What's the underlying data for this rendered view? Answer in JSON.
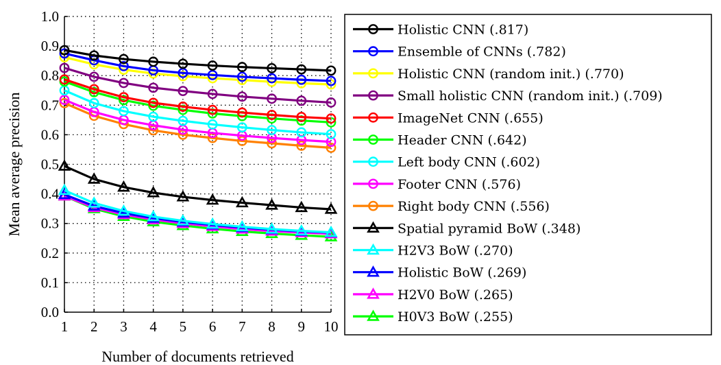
{
  "chart_data": {
    "type": "line",
    "title": "",
    "xlabel": "Number of documents retrieved",
    "ylabel": "Mean average precision",
    "x": [
      1,
      2,
      3,
      4,
      5,
      6,
      7,
      8,
      9,
      10
    ],
    "xlim": [
      1,
      10
    ],
    "ylim": [
      0.0,
      1.0
    ],
    "yticks": [
      "0.0",
      "0.1",
      "0.2",
      "0.3",
      "0.4",
      "0.5",
      "0.6",
      "0.7",
      "0.8",
      "0.9",
      "1.0"
    ],
    "xticks": [
      "1",
      "2",
      "3",
      "4",
      "5",
      "6",
      "7",
      "8",
      "9",
      "10"
    ],
    "grid": true,
    "legend_position": "right",
    "series": [
      {
        "name": "Holistic CNN (.817)",
        "color": "#000000",
        "marker": "circle",
        "values": [
          0.886,
          0.868,
          0.856,
          0.847,
          0.84,
          0.834,
          0.829,
          0.825,
          0.821,
          0.817
        ]
      },
      {
        "name": "Ensemble of CNNs (.782)",
        "color": "#0000ff",
        "marker": "circle",
        "values": [
          0.875,
          0.852,
          0.832,
          0.818,
          0.809,
          0.802,
          0.796,
          0.791,
          0.786,
          0.782
        ]
      },
      {
        "name": "Holistic CNN (random init.) (.770)",
        "color": "#ffff00",
        "marker": "circle",
        "values": [
          0.862,
          0.838,
          0.82,
          0.807,
          0.798,
          0.791,
          0.785,
          0.779,
          0.774,
          0.77
        ]
      },
      {
        "name": "Small holistic CNN (random init.) (.709)",
        "color": "#800080",
        "marker": "circle",
        "values": [
          0.826,
          0.796,
          0.775,
          0.759,
          0.748,
          0.738,
          0.729,
          0.722,
          0.715,
          0.709
        ]
      },
      {
        "name": "ImageNet CNN (.655)",
        "color": "#ff0000",
        "marker": "circle",
        "values": [
          0.787,
          0.754,
          0.727,
          0.708,
          0.695,
          0.684,
          0.675,
          0.667,
          0.66,
          0.655
        ]
      },
      {
        "name": "Header CNN (.642)",
        "color": "#00ff00",
        "marker": "circle",
        "values": [
          0.78,
          0.744,
          0.717,
          0.698,
          0.684,
          0.672,
          0.663,
          0.655,
          0.648,
          0.642
        ]
      },
      {
        "name": "Left body CNN (.602)",
        "color": "#00ffff",
        "marker": "circle",
        "values": [
          0.75,
          0.707,
          0.68,
          0.661,
          0.647,
          0.635,
          0.625,
          0.616,
          0.608,
          0.602
        ]
      },
      {
        "name": "Footer CNN (.576)",
        "color": "#ff00ff",
        "marker": "circle",
        "values": [
          0.718,
          0.677,
          0.65,
          0.632,
          0.617,
          0.606,
          0.597,
          0.589,
          0.582,
          0.576
        ]
      },
      {
        "name": "Right body CNN (.556)",
        "color": "#ff8000",
        "marker": "circle",
        "values": [
          0.707,
          0.664,
          0.636,
          0.615,
          0.6,
          0.589,
          0.579,
          0.571,
          0.563,
          0.556
        ]
      },
      {
        "name": "Spatial pyramid BoW (.348)",
        "color": "#000000",
        "marker": "triangle",
        "values": [
          0.494,
          0.45,
          0.423,
          0.404,
          0.39,
          0.379,
          0.37,
          0.362,
          0.354,
          0.348
        ]
      },
      {
        "name": "H2V3 BoW (.270)",
        "color": "#00ffff",
        "marker": "triangle",
        "values": [
          0.412,
          0.369,
          0.342,
          0.323,
          0.309,
          0.298,
          0.289,
          0.281,
          0.275,
          0.27
        ]
      },
      {
        "name": "Holistic BoW (.269)",
        "color": "#0000ff",
        "marker": "triangle",
        "values": [
          0.398,
          0.359,
          0.335,
          0.318,
          0.305,
          0.295,
          0.286,
          0.279,
          0.273,
          0.269
        ]
      },
      {
        "name": "H2V0 BoW (.265)",
        "color": "#ff00ff",
        "marker": "triangle",
        "values": [
          0.393,
          0.354,
          0.33,
          0.313,
          0.3,
          0.29,
          0.281,
          0.274,
          0.269,
          0.265
        ]
      },
      {
        "name": "H0V3 BoW (.255)",
        "color": "#00ff00",
        "marker": "triangle",
        "values": [
          0.393,
          0.35,
          0.324,
          0.306,
          0.293,
          0.282,
          0.273,
          0.266,
          0.26,
          0.255
        ]
      }
    ]
  }
}
